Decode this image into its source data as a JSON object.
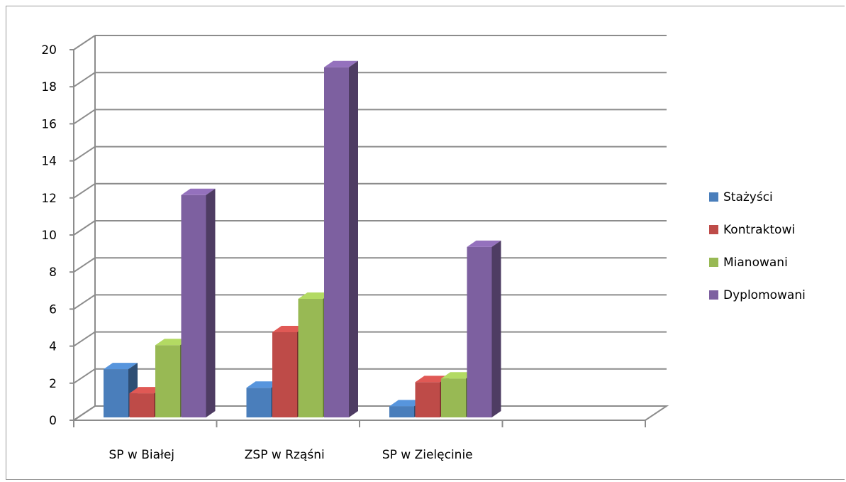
{
  "chart_data": {
    "type": "bar",
    "categories": [
      "SP w Białej",
      "ZSP w Rząśni",
      "SP w Zielęcinie"
    ],
    "series": [
      {
        "name": "Stażyści",
        "values": [
          2.6,
          1.6,
          0.6
        ],
        "color": "#4a7ebb"
      },
      {
        "name": "Kontraktowi",
        "values": [
          1.3,
          4.6,
          1.9
        ],
        "color": "#be4b48"
      },
      {
        "name": "Mianowani",
        "values": [
          3.9,
          6.4,
          2.1
        ],
        "color": "#98b954"
      },
      {
        "name": "Dyplomowani",
        "values": [
          12,
          18.9,
          9.2
        ],
        "color": "#7d60a0"
      }
    ],
    "yticks": [
      "0",
      "2",
      "4",
      "6",
      "8",
      "10",
      "12",
      "14",
      "16",
      "18",
      "20"
    ],
    "ylim": [
      0,
      20
    ],
    "grid": true,
    "legend_position": "right",
    "title": "",
    "xlabel": "",
    "ylabel": ""
  }
}
